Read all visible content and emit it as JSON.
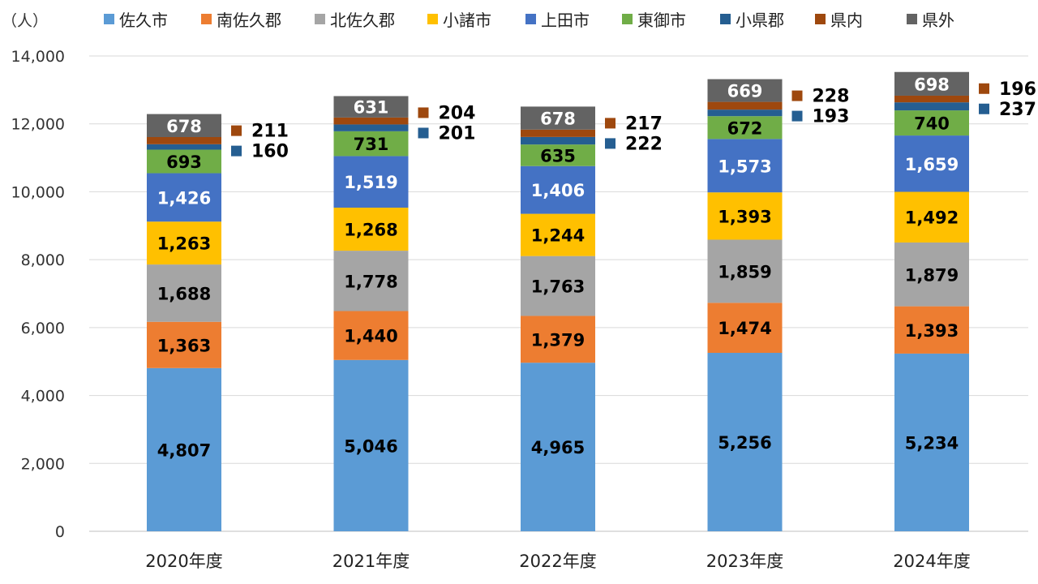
{
  "chart_data": {
    "type": "bar",
    "stacked": true,
    "unit_label": "（人）",
    "categories": [
      "2020年度",
      "2021年度",
      "2022年度",
      "2023年度",
      "2024年度"
    ],
    "ylim": [
      0,
      14000
    ],
    "yticks": [
      0,
      2000,
      4000,
      6000,
      8000,
      10000,
      12000,
      14000
    ],
    "ytick_labels": [
      "0",
      "2,000",
      "4,000",
      "6,000",
      "8,000",
      "10,000",
      "12,000",
      "14,000"
    ],
    "grid": true,
    "legend_position": "top",
    "series": [
      {
        "name": "佐久市",
        "color": "#5b9bd5",
        "values": [
          4807,
          5046,
          4965,
          5256,
          5234
        ],
        "labels": [
          "4,807",
          "5,046",
          "4,965",
          "5,256",
          "5,234"
        ]
      },
      {
        "name": "南佐久郡",
        "color": "#ed7d31",
        "values": [
          1363,
          1440,
          1379,
          1474,
          1393
        ],
        "labels": [
          "1,363",
          "1,440",
          "1,379",
          "1,474",
          "1,393"
        ]
      },
      {
        "name": "北佐久郡",
        "color": "#a5a5a5",
        "values": [
          1688,
          1778,
          1763,
          1859,
          1879
        ],
        "labels": [
          "1,688",
          "1,778",
          "1,763",
          "1,859",
          "1,879"
        ]
      },
      {
        "name": "小諸市",
        "color": "#ffc000",
        "values": [
          1263,
          1268,
          1244,
          1393,
          1492
        ],
        "labels": [
          "1,263",
          "1,268",
          "1,244",
          "1,393",
          "1,492"
        ]
      },
      {
        "name": "上田市",
        "color": "#4472c4",
        "values": [
          1426,
          1519,
          1406,
          1573,
          1659
        ],
        "labels": [
          "1,426",
          "1,519",
          "1,406",
          "1,573",
          "1,659"
        ]
      },
      {
        "name": "東御市",
        "color": "#70ad47",
        "values": [
          693,
          731,
          635,
          672,
          740
        ],
        "labels": [
          "693",
          "731",
          "635",
          "672",
          "740"
        ]
      },
      {
        "name": "小県郡",
        "color": "#255e91",
        "values": [
          160,
          201,
          222,
          193,
          237
        ],
        "labels": [
          "160",
          "201",
          "222",
          "193",
          "237"
        ],
        "label_outside": true
      },
      {
        "name": "県内",
        "color": "#9e480e",
        "values": [
          211,
          204,
          217,
          228,
          196
        ],
        "labels": [
          "211",
          "204",
          "217",
          "228",
          "196"
        ],
        "label_outside": true
      },
      {
        "name": "県外",
        "color": "#636363",
        "values": [
          678,
          631,
          678,
          669,
          698
        ],
        "labels": [
          "678",
          "631",
          "678",
          "669",
          "698"
        ]
      }
    ]
  }
}
